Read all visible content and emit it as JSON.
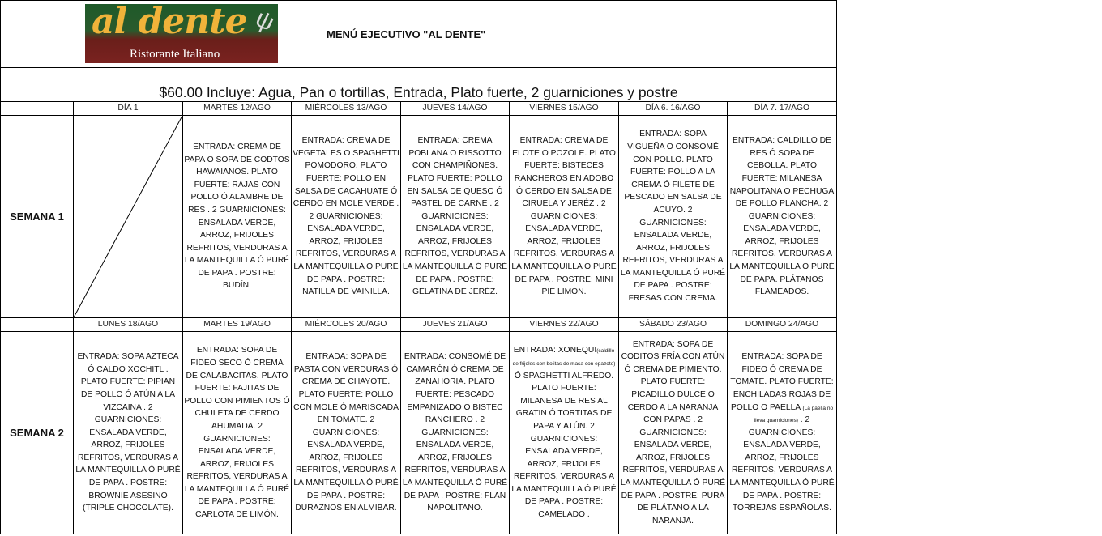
{
  "logo": {
    "text": "al dente",
    "subtitle": "Ristorante Italiano"
  },
  "title": "MENÚ EJECUTIVO \"AL DENTE\"",
  "price_line": "$60.00 Incluye: Agua, Pan o tortillas,  Entrada, Plato fuerte, 2 guarniciones y postre",
  "weeks": [
    {
      "label": "SEMANA 1",
      "days": [
        "DÍA 1",
        "MARTES 12/AGO",
        "MIÉRCOLES 13/AGO",
        "JUEVES 14/AGO",
        "VIERNES 15/AGO",
        "DÍA 6. 16/AGO",
        "DÍA 7. 17/AGO"
      ],
      "menus": [
        "",
        "ENTRADA: CREMA DE PAPA O SOPA DE CODTOS HAWAIANOS.  PLATO FUERTE:  RAJAS CON POLLO Ó ALAMBRE DE RES .  2 GUARNICIONES: ENSALADA VERDE, ARROZ, FRIJOLES REFRITOS, VERDURAS A LA MANTEQUILLA Ó PURÉ DE PAPA . POSTRE: BUDÍN.",
        "ENTRADA: CREMA DE VEGETALES O SPAGHETTI POMODORO.  PLATO FUERTE:  POLLO EN SALSA DE CACAHUATE Ó CERDO EN MOLE VERDE .  2 GUARNICIONES: ENSALADA VERDE, ARROZ, FRIJOLES REFRITOS, VERDURAS A LA MANTEQUILLA Ó PURÉ DE PAPA . POSTRE: NATILLA DE VAINILLA.",
        "ENTRADA:  CREMA POBLANA O RISSOTTO CON CHAMPIÑONES. PLATO FUERTE:  POLLO EN SALSA DE QUESO Ó PASTEL DE CARNE .  2 GUARNICIONES: ENSALADA VERDE, ARROZ, FRIJOLES REFRITOS, VERDURAS A LA MANTEQUILLA Ó PURÉ DE PAPA . POSTRE: GELATINA DE JERÉZ.",
        "ENTRADA:  CREMA DE ELOTE O POZOLE.  PLATO FUERTE:  BISTECES RANCHEROS EN ADOBO Ó CERDO EN SALSA DE CIRUELA Y JERÉZ .  2 GUARNICIONES: ENSALADA VERDE, ARROZ, FRIJOLES REFRITOS, VERDURAS A LA MANTEQUILLA Ó PURÉ DE PAPA . POSTRE: MINI PIE LIMÓN.",
        "ENTRADA: SOPA VIGUEÑA O CONSOMÉ CON POLLO. PLATO FUERTE: POLLO A LA CREMA Ó FILETE DE PESCADO EN SALSA DE ACUYO. 2 GUARNICIONES: ENSALADA VERDE, ARROZ, FRIJOLES REFRITOS, VERDURAS A LA MANTEQUILLA Ó PURÉ DE PAPA . POSTRE: FRESAS CON CREMA.",
        "ENTRADA: CALDILLO DE RES Ó SOPA DE CEBOLLA. PLATO FUERTE: MILANESA NAPOLITANA O  PECHUGA DE POLLO PLANCHA.  2 GUARNICIONES: ENSALADA VERDE, ARROZ, FRIJOLES REFRITOS, VERDURAS A LA MANTEQUILLA Ó PURÉ DE PAPA.  PLÁTANOS FLAMEADOS."
      ]
    },
    {
      "label": "SEMANA 2",
      "days": [
        "LUNES  18/AGO",
        "MARTES  19/AGO",
        "MIÉRCOLES 20/AGO",
        "JUEVES 21/AGO",
        "VIERNES  22/AGO",
        "SÁBADO 23/AGO",
        "DOMINGO 24/AGO"
      ],
      "menus": [
        "ENTRADA: SOPA  AZTECA Ó CALDO XOCHITL . PLATO FUERTE: PIPIAN DE POLLO Ó ATÚN A LA VIZCAINA .  2 GUARNICIONES: ENSALADA VERDE, ARROZ, FRIJOLES REFRITOS, VERDURAS A LA MANTEQUILLA Ó PURÉ DE PAPA . POSTRE: BROWNIE ASESINO (TRIPLE CHOCOLATE).",
        "ENTRADA: SOPA  DE FIDEO SECO  Ó CREMA DE CALABACITAS. PLATO FUERTE: FAJITAS DE POLLO CON PIMIENTOS Ó CHULETA DE CERDO AHUMADA.  2 GUARNICIONES: ENSALADA VERDE, ARROZ, FRIJOLES REFRITOS, VERDURAS A LA MANTEQUILLA Ó PURÉ DE PAPA .  POSTRE: CARLOTA DE LIMÓN.",
        "ENTRADA: SOPA DE PASTA CON VERDURAS Ó CREMA DE  CHAYOTE. PLATO FUERTE: POLLO CON MOLE Ó MARISCADA EN TOMATE.  2 GUARNICIONES: ENSALADA VERDE, ARROZ, FRIJOLES REFRITOS, VERDURAS A LA MANTEQUILLA Ó PURÉ DE PAPA . POSTRE: DURAZNOS EN ALMIBAR.",
        "ENTRADA: CONSOMÉ DE CAMARÓN Ó CREMA DE ZANAHORIA.  PLATO FUERTE: PESCADO EMPANIZADO O BISTEC RANCHERO .  2 GUARNICIONES: ENSALADA VERDE, ARROZ, FRIJOLES REFRITOS, VERDURAS A LA MANTEQUILLA Ó PURÉ DE PAPA . POSTRE: FLAN NAPOLITANO.",
        {
          "pre": "ENTRADA: XONEQUI",
          "small": "(caldillo de frijoles con bolitas de masa con epazote)",
          "post": " Ó SPAGHETTI ALFREDO. PLATO FUERTE: MILANESA DE RES AL GRATIN Ó TORTITAS DE PAPA Y ATÚN.    2 GUARNICIONES: ENSALADA VERDE, ARROZ, FRIJOLES REFRITOS, VERDURAS A LA MANTEQUILLA Ó PURÉ DE PAPA . POSTRE: CAMELADO ."
        },
        "ENTRADA: SOPA  DE CODITOS FRÍA CON ATÚN Ó CREMA DE PIMIENTO. PLATO FUERTE: PICADILLO DULCE O CERDO A LA NARANJA CON PAPAS .  2 GUARNICIONES: ENSALADA VERDE, ARROZ, FRIJOLES REFRITOS, VERDURAS A LA MANTEQUILLA Ó PURÉ DE PAPA . POSTRE: PURÁ DE PLÁTANO A LA NARANJA.",
        {
          "pre": "ENTRADA: SOPA  DE FIDEO Ó CREMA DE TOMATE. PLATO FUERTE: ENCHILADAS ROJAS DE POLLO O PAELLA ",
          "small": "(La paella no lleva guarniciones)",
          "post": " .  2 GUARNICIONES: ENSALADA VERDE, ARROZ, FRIJOLES REFRITOS, VERDURAS A LA MANTEQUILLA Ó PURÉ DE PAPA .  POSTRE: TORREJAS ESPAÑOLAS."
        }
      ]
    }
  ]
}
